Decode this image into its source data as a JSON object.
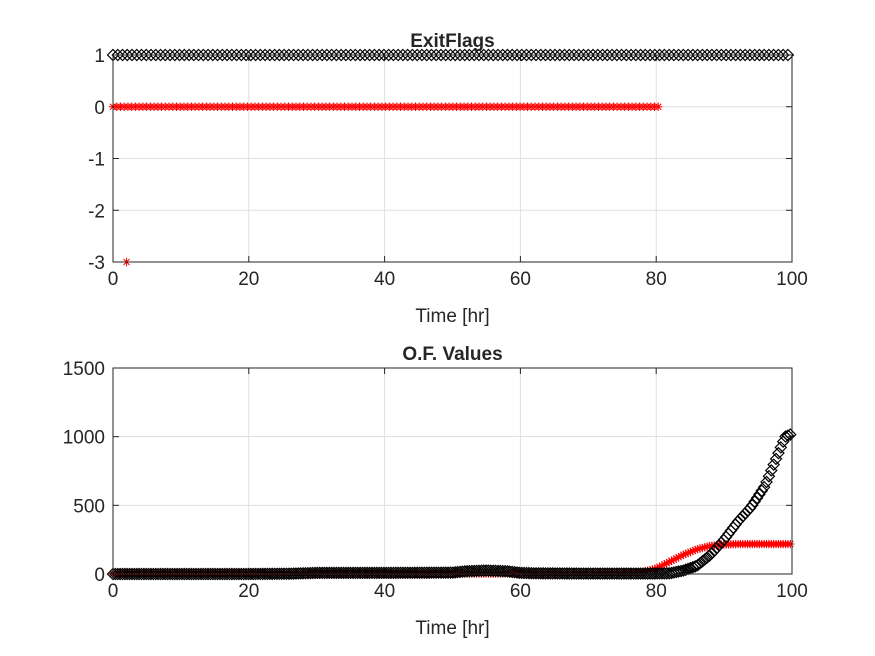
{
  "chart_data": [
    {
      "type": "scatter",
      "title": "ExitFlags",
      "xlabel": "Time [hr]",
      "ylabel": "",
      "xlim": [
        0,
        100
      ],
      "ylim": [
        -3,
        1
      ],
      "xticks": [
        "0",
        "20",
        "40",
        "60",
        "80",
        "100"
      ],
      "yticks": [
        "-3",
        "-2",
        "-1",
        "0",
        "1"
      ],
      "grid": true,
      "series": [
        {
          "marker": "diamond",
          "color": "#000000",
          "points": [
            [
              0,
              1
            ],
            [
              10,
              1
            ],
            [
              20,
              1
            ],
            [
              30,
              1
            ],
            [
              40,
              1
            ],
            [
              50,
              1
            ],
            [
              60,
              1
            ],
            [
              70,
              1
            ],
            [
              80,
              1
            ],
            [
              90,
              1
            ],
            [
              100,
              1
            ]
          ],
          "dense_range": [
            0,
            100
          ]
        },
        {
          "marker": "asterisk",
          "color": "#ff0000",
          "points": [
            [
              2,
              -3
            ],
            [
              0,
              0
            ],
            [
              10,
              0
            ],
            [
              20,
              0
            ],
            [
              30,
              0
            ],
            [
              40,
              0
            ],
            [
              50,
              0
            ],
            [
              60,
              0
            ],
            [
              70,
              0
            ],
            [
              80,
              0
            ]
          ],
          "dense_range": [
            0,
            80.5
          ]
        }
      ]
    },
    {
      "type": "scatter",
      "title": "O.F. Values",
      "xlabel": "Time [hr]",
      "ylabel": "",
      "xlim": [
        0,
        100
      ],
      "ylim": [
        0,
        1500
      ],
      "xticks": [
        "0",
        "20",
        "40",
        "60",
        "80",
        "100"
      ],
      "yticks": [
        "0",
        "500",
        "1000",
        "1500"
      ],
      "grid": true,
      "series": [
        {
          "marker": "asterisk",
          "color": "#ff0000",
          "points": [
            [
              0,
              2
            ],
            [
              20,
              3
            ],
            [
              40,
              3
            ],
            [
              60,
              3
            ],
            [
              75,
              5
            ],
            [
              78,
              15
            ],
            [
              80,
              40
            ],
            [
              82,
              90
            ],
            [
              84,
              140
            ],
            [
              86,
              180
            ],
            [
              88,
              205
            ],
            [
              90,
              215
            ],
            [
              92,
              218
            ],
            [
              95,
              218
            ],
            [
              98,
              218
            ],
            [
              100,
              218
            ]
          ]
        },
        {
          "marker": "diamond",
          "color": "#000000",
          "points": [
            [
              0,
              0
            ],
            [
              10,
              0
            ],
            [
              20,
              0
            ],
            [
              26,
              2
            ],
            [
              30,
              8
            ],
            [
              40,
              8
            ],
            [
              50,
              10
            ],
            [
              52,
              20
            ],
            [
              55,
              25
            ],
            [
              58,
              20
            ],
            [
              60,
              8
            ],
            [
              62,
              5
            ],
            [
              70,
              3
            ],
            [
              78,
              3
            ],
            [
              82,
              5
            ],
            [
              84,
              25
            ],
            [
              86,
              60
            ],
            [
              88,
              140
            ],
            [
              90,
              250
            ],
            [
              92,
              380
            ],
            [
              94,
              490
            ],
            [
              96,
              640
            ],
            [
              98,
              880
            ],
            [
              99,
              1000
            ],
            [
              100,
              1020
            ]
          ]
        }
      ]
    }
  ]
}
